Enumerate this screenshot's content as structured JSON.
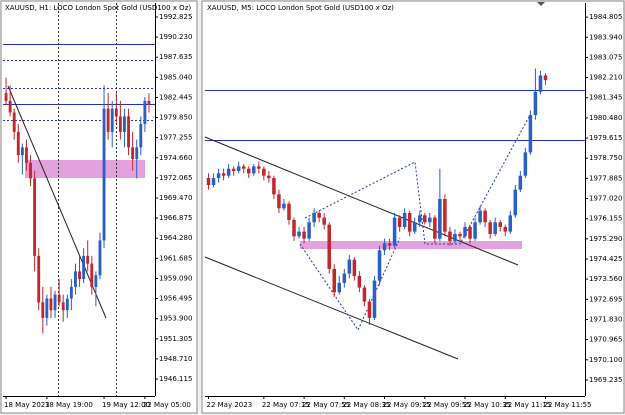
{
  "chart_data": [
    {
      "type": "candlestick",
      "title": "XAUUSD, H1:  LOCO London Spot Gold (USD100 x Oz)",
      "categories": [
        "18 May 2023",
        null,
        null,
        null,
        null,
        null,
        null,
        null,
        null,
        null,
        "18 May 19:00",
        null,
        null,
        null,
        null,
        null,
        null,
        null,
        null,
        null,
        null,
        null,
        null,
        null,
        "19 May 12:00",
        null,
        null,
        null,
        null,
        null,
        null,
        null,
        null,
        null,
        "22 May 05:00",
        null
      ],
      "open": [
        1983,
        1982,
        1980.5,
        1978,
        1975,
        1976,
        1974,
        1972,
        1962,
        1956,
        1954,
        1956.5,
        1955,
        1957,
        1956,
        1955,
        1956.5,
        1958,
        1960,
        1959,
        1962,
        1961,
        1958,
        1959.5,
        1964,
        1981,
        1978,
        1981,
        1980,
        1978,
        1980,
        1976,
        1974.5,
        1976,
        1979,
        1982
      ],
      "high": [
        1985,
        1984,
        1981,
        1979,
        1976.5,
        1977,
        1975,
        1973,
        1963,
        1958,
        1957,
        1958,
        1957.5,
        1959,
        1957,
        1957,
        1959,
        1961,
        1962,
        1963,
        1964,
        1962,
        1960,
        1965,
        1984,
        1983,
        1982,
        1983,
        1982,
        1981,
        1981,
        1978,
        1977,
        1980,
        1982.5,
        1983
      ],
      "low": [
        1981.5,
        1980,
        1977,
        1974,
        1972.5,
        1973,
        1971,
        1960,
        1955,
        1952,
        1953,
        1954,
        1954,
        1955.5,
        1953.5,
        1954,
        1955,
        1957,
        1958,
        1958.5,
        1960,
        1957,
        1955.5,
        1959,
        1963,
        1977,
        1976,
        1979,
        1977,
        1976,
        1975,
        1973,
        1972,
        1975,
        1978,
        1980.5
      ],
      "close": [
        1982,
        1980.5,
        1978,
        1975,
        1976,
        1974,
        1972,
        1962,
        1956,
        1954,
        1956.5,
        1955,
        1957,
        1956,
        1955,
        1956.5,
        1958,
        1960,
        1959,
        1962,
        1961,
        1958,
        1959.5,
        1964,
        1981,
        1978,
        1981,
        1980,
        1978,
        1980,
        1976,
        1974.5,
        1976,
        1979,
        1982,
        1981.5
      ],
      "up_color": "#2a5fc4",
      "down_color": "#c0282b",
      "grid": false,
      "ylim": [
        1944.05,
        1994.63
      ],
      "yticks": [
        1992.825,
        {
          "value": 1990.23,
          "label": "1990.230"
        },
        1987.635,
        {
          "value": 1985.04,
          "label": "1985.040"
        },
        1982.445,
        {
          "value": 1979.85,
          "label": "1979.850"
        },
        1977.255,
        {
          "value": 1974.66,
          "label": "1974.660"
        },
        1972.065,
        {
          "value": 1969.47,
          "label": "1969.470"
        },
        1966.875,
        {
          "value": 1964.28,
          "label": "1964.280"
        },
        1961.685,
        {
          "value": 1959.09,
          "label": "1959.090"
        },
        1956.495,
        {
          "value": 1953.9,
          "label": "1953.900"
        },
        1951.305,
        {
          "value": 1948.71,
          "label": "1948.710"
        },
        1946.115
      ]
    },
    {
      "type": "candlestick",
      "title": "XAUUSD, M5:  LOCO London Spot Gold (USD100 x Oz)",
      "categories": [
        "22 May 2023",
        null,
        null,
        null,
        null,
        null,
        null,
        null,
        null,
        null,
        null,
        "22 May 07:15",
        null,
        null,
        null,
        null,
        null,
        null,
        null,
        "22 May 07:55",
        null,
        null,
        null,
        null,
        null,
        null,
        null,
        "22 May 08:35",
        null,
        null,
        null,
        null,
        null,
        null,
        null,
        "22 May 09:15",
        null,
        null,
        null,
        null,
        null,
        null,
        null,
        "22 May 09:55",
        null,
        null,
        null,
        null,
        null,
        null,
        null,
        "22 May 10:35",
        null,
        null,
        null,
        null,
        null,
        null,
        null,
        "22 May 11:15",
        null,
        null,
        null,
        null,
        null,
        null,
        null,
        "22 May 11:55"
      ],
      "open": [
        1977.9,
        1977.6,
        1977.9,
        1978.1,
        1978.0,
        1978.3,
        1978.2,
        1978.4,
        1978.3,
        1978.1,
        1978.4,
        1978.3,
        1978.0,
        1977.9,
        1977.2,
        1976.6,
        1976.8,
        1976.1,
        1975.4,
        1975.6,
        1975.3,
        1976.0,
        1976.4,
        1976.2,
        1975.9,
        1974.0,
        1973.0,
        1973.4,
        1973.8,
        1974.4,
        1973.7,
        1973.2,
        1972.6,
        1971.9,
        1973.5,
        1974.8,
        1975.1,
        1975.0,
        1976.2,
        1975.8,
        1976.4,
        1975.6,
        1976.0,
        1976.3,
        1976.0,
        1976.2,
        1975.3,
        1977.0,
        1975.6,
        1975.2,
        1975.5,
        1975.4,
        1975.8,
        1975.3,
        1976.0,
        1976.5,
        1976.0,
        1975.5,
        1976.0,
        1975.8,
        1975.6,
        1976.3,
        1977.4,
        1978.0,
        1979.0,
        1980.6,
        1981.6,
        1982.3
      ],
      "high": [
        1978.1,
        1978.1,
        1978.3,
        1978.3,
        1978.5,
        1978.4,
        1978.6,
        1978.5,
        1978.4,
        1978.5,
        1978.6,
        1978.4,
        1978.2,
        1978.0,
        1977.4,
        1977.0,
        1976.9,
        1976.2,
        1975.8,
        1975.8,
        1976.2,
        1976.6,
        1976.5,
        1976.4,
        1976.0,
        1974.2,
        1973.7,
        1974.0,
        1974.6,
        1974.5,
        1973.9,
        1973.3,
        1972.7,
        1973.7,
        1975.0,
        1975.3,
        1975.3,
        1976.4,
        1976.3,
        1976.6,
        1976.5,
        1976.2,
        1976.5,
        1976.4,
        1976.4,
        1976.3,
        1978.3,
        1977.2,
        1975.8,
        1975.7,
        1975.6,
        1976.0,
        1975.9,
        1976.2,
        1976.7,
        1976.6,
        1976.1,
        1976.2,
        1976.1,
        1975.9,
        1976.5,
        1977.6,
        1978.2,
        1979.2,
        1980.8,
        1982.6,
        1982.5,
        1982.4
      ],
      "low": [
        1977.4,
        1977.5,
        1977.7,
        1977.8,
        1977.9,
        1978.0,
        1978.1,
        1978.1,
        1977.9,
        1978.0,
        1978.1,
        1977.8,
        1977.7,
        1977.0,
        1976.4,
        1976.5,
        1975.9,
        1975.2,
        1975.3,
        1975.1,
        1975.2,
        1975.8,
        1976.0,
        1975.7,
        1973.8,
        1972.8,
        1972.9,
        1973.2,
        1973.6,
        1973.5,
        1973.0,
        1972.4,
        1971.6,
        1971.8,
        1973.3,
        1974.6,
        1974.8,
        1974.9,
        1975.6,
        1975.7,
        1975.4,
        1975.5,
        1975.8,
        1975.9,
        1975.8,
        1975.1,
        1975.2,
        1975.4,
        1975.0,
        1975.1,
        1975.2,
        1975.3,
        1975.1,
        1975.2,
        1975.9,
        1975.8,
        1975.3,
        1975.4,
        1975.6,
        1975.4,
        1975.5,
        1976.2,
        1977.3,
        1977.9,
        1978.9,
        1980.4,
        1981.5,
        1981.9
      ],
      "close": [
        1977.6,
        1977.9,
        1978.1,
        1978.0,
        1978.3,
        1978.2,
        1978.4,
        1978.3,
        1978.1,
        1978.4,
        1978.3,
        1978.0,
        1977.9,
        1977.2,
        1976.6,
        1976.8,
        1976.1,
        1975.4,
        1975.6,
        1975.3,
        1976.0,
        1976.4,
        1976.2,
        1975.9,
        1974.0,
        1973.0,
        1973.4,
        1973.8,
        1974.4,
        1973.7,
        1973.2,
        1972.6,
        1971.9,
        1973.5,
        1974.8,
        1975.1,
        1975.0,
        1976.2,
        1975.8,
        1976.4,
        1975.6,
        1976.0,
        1976.3,
        1976.0,
        1976.2,
        1975.3,
        1977.0,
        1975.6,
        1975.2,
        1975.5,
        1975.4,
        1975.8,
        1975.3,
        1976.0,
        1976.5,
        1976.0,
        1975.5,
        1976.0,
        1975.8,
        1975.6,
        1976.3,
        1977.4,
        1978.0,
        1979.0,
        1980.6,
        1981.6,
        1982.3,
        1982.1
      ],
      "up_color": "#2a5fc4",
      "down_color": "#c0282b",
      "grid": false,
      "ylim": [
        1968.59,
        1985.41
      ],
      "yticks": [
        1984.805,
        {
          "value": 1983.94,
          "label": "1983.940"
        },
        1983.075,
        {
          "value": 1982.21,
          "label": "1982.210"
        },
        1981.345,
        {
          "value": 1980.48,
          "label": "1980.480"
        },
        1979.615,
        {
          "value": 1978.75,
          "label": "1978.750"
        },
        1977.885,
        {
          "value": 1977.02,
          "label": "1977.020"
        },
        1976.155,
        {
          "value": 1975.29,
          "label": "1975.290"
        },
        1974.425,
        {
          "value": 1973.56,
          "label": "1973.560"
        },
        1972.695,
        {
          "value": 1971.83,
          "label": "1971.830"
        },
        1970.965,
        {
          "value": 1970.1,
          "label": "1970.100"
        },
        1969.235
      ]
    }
  ]
}
